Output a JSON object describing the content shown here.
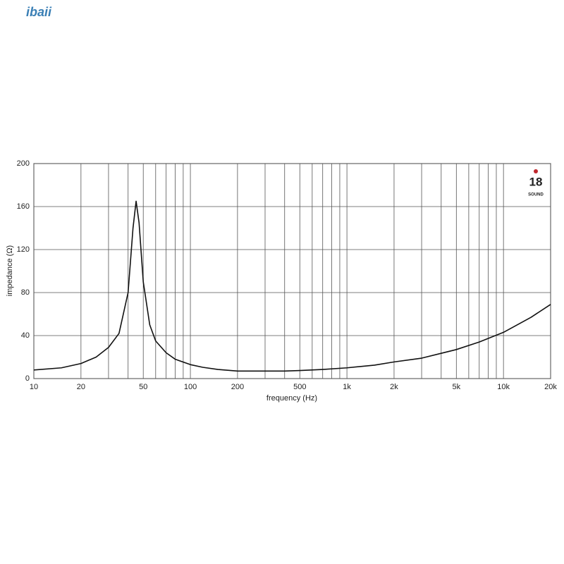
{
  "watermark": "ibaii",
  "brand": {
    "number": "18",
    "name": "SOUND"
  },
  "chart_data": {
    "type": "line",
    "x_label": "frequency (Hz)",
    "y_label": "impedance (Ω)",
    "x_log": true,
    "grid": true,
    "xlim": [
      10,
      20000
    ],
    "ylim": [
      0,
      200
    ],
    "xticks": [
      10,
      20,
      50,
      100,
      200,
      500,
      {
        "value": 1000,
        "label": "1k"
      },
      {
        "value": 2000,
        "label": "2k"
      },
      {
        "value": 5000,
        "label": "5k"
      },
      {
        "value": 10000,
        "label": "10k"
      },
      {
        "value": 20000,
        "label": "20k"
      }
    ],
    "x_minor_grid": [
      30,
      40,
      60,
      70,
      80,
      90,
      300,
      400,
      600,
      700,
      800,
      900,
      3000,
      4000,
      6000,
      7000,
      8000,
      9000
    ],
    "yticks": [
      0,
      40,
      80,
      120,
      160,
      200
    ],
    "x": [
      10,
      15,
      20,
      25,
      30,
      35,
      40,
      43,
      45,
      47,
      50,
      55,
      60,
      70,
      80,
      100,
      120,
      150,
      200,
      300,
      400,
      500,
      700,
      1000,
      1500,
      2000,
      3000,
      5000,
      7000,
      10000,
      15000,
      20000
    ],
    "series": [
      {
        "name": "impedance",
        "color": "#111111",
        "values": [
          8,
          10,
          14,
          20,
          29,
          42,
          80,
          140,
          165,
          145,
          90,
          50,
          35,
          24,
          18,
          13,
          10.5,
          8.5,
          7,
          7,
          7,
          7.5,
          8.5,
          10,
          12.5,
          15.5,
          19,
          27,
          34,
          43,
          57,
          69
        ]
      }
    ]
  }
}
